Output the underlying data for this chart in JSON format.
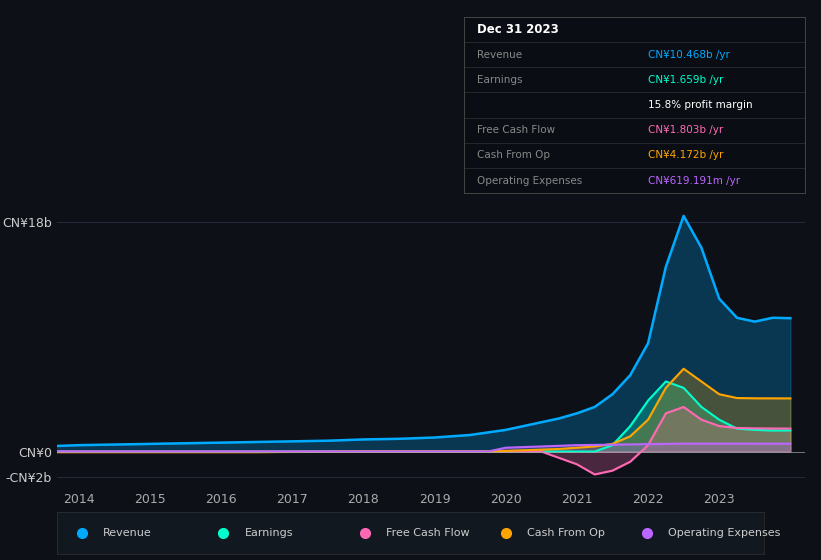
{
  "background_color": "#0d1117",
  "plot_bg_color": "#0d1117",
  "grid_color": "#2a3040",
  "years": [
    2013.0,
    2013.5,
    2014.0,
    2014.5,
    2015.0,
    2015.5,
    2016.0,
    2016.5,
    2017.0,
    2017.5,
    2018.0,
    2018.5,
    2019.0,
    2019.25,
    2019.5,
    2019.75,
    2020.0,
    2020.25,
    2020.5,
    2020.75,
    2021.0,
    2021.25,
    2021.5,
    2021.75,
    2022.0,
    2022.25,
    2022.5,
    2022.75,
    2023.0,
    2023.25,
    2023.5,
    2023.75,
    2024.0
  ],
  "revenue": [
    0.3,
    0.4,
    0.5,
    0.55,
    0.6,
    0.65,
    0.7,
    0.75,
    0.8,
    0.85,
    0.95,
    1.0,
    1.1,
    1.2,
    1.3,
    1.5,
    1.7,
    2.0,
    2.3,
    2.6,
    3.0,
    3.5,
    4.5,
    6.0,
    8.5,
    14.5,
    18.5,
    16.0,
    12.0,
    10.5,
    10.2,
    10.5,
    10.468
  ],
  "earnings": [
    0.0,
    0.0,
    0.0,
    0.0,
    0.0,
    0.0,
    0.0,
    0.0,
    0.0,
    0.0,
    0.0,
    0.0,
    0.0,
    0.0,
    0.0,
    0.0,
    0.0,
    0.0,
    0.0,
    0.0,
    0.0,
    0.0,
    0.5,
    2.0,
    4.0,
    5.5,
    5.0,
    3.5,
    2.5,
    1.8,
    1.7,
    1.65,
    1.659
  ],
  "free_cash_flow": [
    0.0,
    0.0,
    0.0,
    0.0,
    0.0,
    0.0,
    0.0,
    0.0,
    0.0,
    0.0,
    0.0,
    0.0,
    0.0,
    0.0,
    0.0,
    0.0,
    0.0,
    0.0,
    0.0,
    -0.5,
    -1.0,
    -1.8,
    -1.5,
    -0.8,
    0.5,
    3.0,
    3.5,
    2.5,
    2.0,
    1.85,
    1.82,
    1.81,
    1.803
  ],
  "cash_from_op": [
    -0.05,
    -0.05,
    -0.05,
    -0.05,
    -0.05,
    -0.05,
    -0.05,
    -0.05,
    -0.03,
    -0.02,
    0.0,
    0.0,
    0.0,
    0.0,
    0.0,
    0.0,
    0.05,
    0.1,
    0.15,
    0.2,
    0.3,
    0.4,
    0.6,
    1.2,
    2.5,
    5.0,
    6.5,
    5.5,
    4.5,
    4.2,
    4.18,
    4.175,
    4.172
  ],
  "operating_expenses": [
    0.0,
    0.0,
    0.0,
    0.0,
    0.0,
    0.0,
    0.0,
    0.0,
    0.0,
    0.0,
    0.0,
    0.0,
    0.0,
    0.0,
    0.0,
    0.0,
    0.3,
    0.35,
    0.4,
    0.45,
    0.5,
    0.52,
    0.54,
    0.56,
    0.58,
    0.6,
    0.62,
    0.62,
    0.62,
    0.62,
    0.619,
    0.619,
    0.619
  ],
  "xtick_labels": [
    "2014",
    "2015",
    "2016",
    "2017",
    "2018",
    "2019",
    "2020",
    "2021",
    "2022",
    "2023"
  ],
  "revenue_color": "#00aaff",
  "earnings_color": "#00ffcc",
  "free_cash_flow_color": "#ff69b4",
  "cash_from_op_color": "#ffa500",
  "operating_expenses_color": "#bb66ff",
  "legend_items": [
    "Revenue",
    "Earnings",
    "Free Cash Flow",
    "Cash From Op",
    "Operating Expenses"
  ],
  "legend_colors": [
    "#00aaff",
    "#00ffcc",
    "#ff69b4",
    "#ffa500",
    "#bb66ff"
  ],
  "info_rows": [
    {
      "label": "Dec 31 2023",
      "value": "",
      "value_color": "#ffffff",
      "is_header": true
    },
    {
      "label": "Revenue",
      "value": "CN¥10.468b /yr",
      "value_color": "#00aaff",
      "is_header": false
    },
    {
      "label": "Earnings",
      "value": "CN¥1.659b /yr",
      "value_color": "#00ffcc",
      "is_header": false
    },
    {
      "label": "",
      "value": "15.8% profit margin",
      "value_color": "#ffffff",
      "is_header": false
    },
    {
      "label": "Free Cash Flow",
      "value": "CN¥1.803b /yr",
      "value_color": "#ff69b4",
      "is_header": false
    },
    {
      "label": "Cash From Op",
      "value": "CN¥4.172b /yr",
      "value_color": "#ffa500",
      "is_header": false
    },
    {
      "label": "Operating Expenses",
      "value": "CN¥619.191m /yr",
      "value_color": "#bb66ff",
      "is_header": false
    }
  ]
}
